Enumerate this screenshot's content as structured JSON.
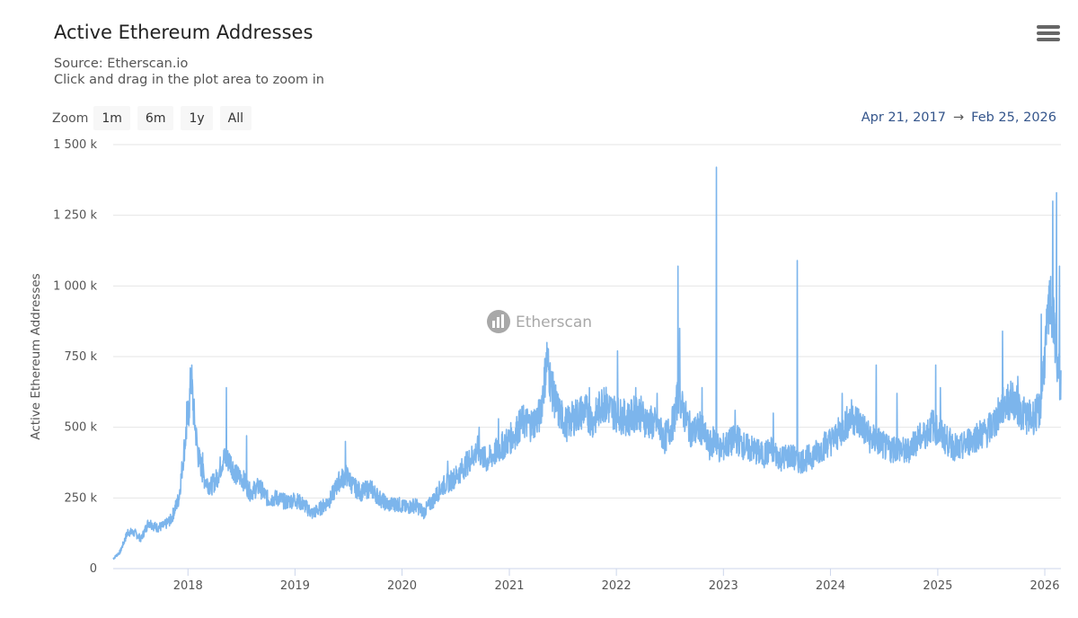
{
  "header": {
    "title": "Active Ethereum Addresses",
    "source": "Source: Etherscan.io",
    "hint": "Click and drag in the plot area to zoom in",
    "menu_icon": "hamburger-menu-icon"
  },
  "zoom": {
    "label": "Zoom",
    "buttons": [
      "1m",
      "6m",
      "1y",
      "All"
    ]
  },
  "range": {
    "from": "Apr 21, 2017",
    "arrow": "→",
    "to": "Feb 25, 2026"
  },
  "watermark": {
    "text": "Etherscan",
    "icon": "etherscan-logo-icon"
  },
  "colors": {
    "series": "#7cb5ec",
    "grid": "#e6e6e6",
    "axis": "#ccd6eb",
    "range_text": "#34558b"
  },
  "chart_data": {
    "type": "line",
    "title": "Active Ethereum Addresses",
    "ylabel": "Active Ethereum Addresses",
    "xlabel": "",
    "x_range": [
      "2017-04-21",
      "2026-02-25"
    ],
    "ylim": [
      0,
      1500000
    ],
    "y_ticks": [
      {
        "value": 0,
        "label": "0"
      },
      {
        "value": 250000,
        "label": "250 k"
      },
      {
        "value": 500000,
        "label": "500 k"
      },
      {
        "value": 750000,
        "label": "750 k"
      },
      {
        "value": 1000000,
        "label": "1 000 k"
      },
      {
        "value": 1250000,
        "label": "1 250 k"
      },
      {
        "value": 1500000,
        "label": "1 500 k"
      }
    ],
    "x_ticks": [
      {
        "date": "2018-01-01",
        "label": "2018"
      },
      {
        "date": "2019-01-01",
        "label": "2019"
      },
      {
        "date": "2020-01-01",
        "label": "2020"
      },
      {
        "date": "2021-01-01",
        "label": "2021"
      },
      {
        "date": "2022-01-01",
        "label": "2022"
      },
      {
        "date": "2023-01-01",
        "label": "2023"
      },
      {
        "date": "2024-01-01",
        "label": "2024"
      },
      {
        "date": "2025-01-01",
        "label": "2025"
      },
      {
        "date": "2026-01-01",
        "label": "2026"
      }
    ],
    "grid": true,
    "legend": "none",
    "series": [
      {
        "color": "#7cb5ec",
        "points": [
          [
            "2017-04-21",
            35000
          ],
          [
            "2017-05-15",
            60000
          ],
          [
            "2017-06-10",
            130000
          ],
          [
            "2017-07-05",
            125000
          ],
          [
            "2017-07-25",
            105000
          ],
          [
            "2017-08-20",
            165000
          ],
          [
            "2017-09-15",
            145000
          ],
          [
            "2017-10-10",
            150000
          ],
          [
            "2017-11-05",
            175000
          ],
          [
            "2017-12-01",
            250000
          ],
          [
            "2017-12-20",
            430000
          ],
          [
            "2018-01-05",
            570000
          ],
          [
            "2018-01-12",
            690000
          ],
          [
            "2018-01-20",
            560000
          ],
          [
            "2018-02-05",
            400000
          ],
          [
            "2018-02-25",
            320000
          ],
          [
            "2018-03-20",
            290000
          ],
          [
            "2018-04-10",
            320000
          ],
          [
            "2018-05-01",
            390000
          ],
          [
            "2018-05-25",
            380000
          ],
          [
            "2018-06-15",
            330000
          ],
          [
            "2018-07-05",
            320000
          ],
          [
            "2018-08-01",
            270000
          ],
          [
            "2018-09-01",
            290000
          ],
          [
            "2018-10-01",
            245000
          ],
          [
            "2018-11-01",
            250000
          ],
          [
            "2018-12-01",
            235000
          ],
          [
            "2019-01-01",
            245000
          ],
          [
            "2019-02-01",
            225000
          ],
          [
            "2019-03-01",
            195000
          ],
          [
            "2019-04-01",
            215000
          ],
          [
            "2019-05-01",
            245000
          ],
          [
            "2019-06-01",
            310000
          ],
          [
            "2019-06-25",
            330000
          ],
          [
            "2019-07-20",
            290000
          ],
          [
            "2019-08-15",
            270000
          ],
          [
            "2019-09-15",
            285000
          ],
          [
            "2019-10-15",
            250000
          ],
          [
            "2019-11-15",
            225000
          ],
          [
            "2019-12-15",
            230000
          ],
          [
            "2020-01-15",
            215000
          ],
          [
            "2020-02-15",
            225000
          ],
          [
            "2020-03-15",
            200000
          ],
          [
            "2020-04-15",
            240000
          ],
          [
            "2020-05-15",
            290000
          ],
          [
            "2020-06-15",
            310000
          ],
          [
            "2020-07-15",
            340000
          ],
          [
            "2020-08-15",
            380000
          ],
          [
            "2020-09-15",
            420000
          ],
          [
            "2020-10-15",
            380000
          ],
          [
            "2020-11-15",
            410000
          ],
          [
            "2020-12-15",
            440000
          ],
          [
            "2021-01-15",
            470000
          ],
          [
            "2021-02-15",
            520000
          ],
          [
            "2021-03-15",
            510000
          ],
          [
            "2021-04-15",
            540000
          ],
          [
            "2021-05-10",
            740000
          ],
          [
            "2021-05-25",
            640000
          ],
          [
            "2021-06-15",
            560000
          ],
          [
            "2021-07-15",
            510000
          ],
          [
            "2021-08-15",
            540000
          ],
          [
            "2021-09-15",
            560000
          ],
          [
            "2021-10-15",
            520000
          ],
          [
            "2021-11-15",
            590000
          ],
          [
            "2021-12-15",
            560000
          ],
          [
            "2022-01-15",
            540000
          ],
          [
            "2022-02-15",
            530000
          ],
          [
            "2022-03-15",
            560000
          ],
          [
            "2022-04-15",
            520000
          ],
          [
            "2022-05-15",
            510000
          ],
          [
            "2022-06-15",
            460000
          ],
          [
            "2022-07-15",
            520000
          ],
          [
            "2022-08-01",
            620000
          ],
          [
            "2022-08-15",
            560000
          ],
          [
            "2022-09-15",
            480000
          ],
          [
            "2022-10-15",
            500000
          ],
          [
            "2022-11-15",
            430000
          ],
          [
            "2022-12-01",
            460000
          ],
          [
            "2022-12-20",
            420000
          ],
          [
            "2023-01-15",
            440000
          ],
          [
            "2023-02-15",
            460000
          ],
          [
            "2023-03-15",
            430000
          ],
          [
            "2023-04-15",
            420000
          ],
          [
            "2023-05-15",
            400000
          ],
          [
            "2023-06-15",
            420000
          ],
          [
            "2023-07-15",
            390000
          ],
          [
            "2023-08-15",
            400000
          ],
          [
            "2023-09-15",
            380000
          ],
          [
            "2023-10-15",
            390000
          ],
          [
            "2023-11-15",
            410000
          ],
          [
            "2023-12-15",
            440000
          ],
          [
            "2024-01-15",
            460000
          ],
          [
            "2024-02-15",
            500000
          ],
          [
            "2024-03-15",
            540000
          ],
          [
            "2024-04-15",
            510000
          ],
          [
            "2024-05-15",
            460000
          ],
          [
            "2024-06-15",
            450000
          ],
          [
            "2024-07-15",
            420000
          ],
          [
            "2024-08-15",
            430000
          ],
          [
            "2024-09-15",
            410000
          ],
          [
            "2024-10-15",
            450000
          ],
          [
            "2024-11-15",
            470000
          ],
          [
            "2024-12-15",
            510000
          ],
          [
            "2025-01-15",
            470000
          ],
          [
            "2025-02-15",
            440000
          ],
          [
            "2025-03-15",
            420000
          ],
          [
            "2025-04-15",
            450000
          ],
          [
            "2025-05-15",
            470000
          ],
          [
            "2025-06-15",
            480000
          ],
          [
            "2025-07-15",
            520000
          ],
          [
            "2025-08-15",
            580000
          ],
          [
            "2025-09-15",
            600000
          ],
          [
            "2025-10-15",
            550000
          ],
          [
            "2025-11-15",
            530000
          ],
          [
            "2025-12-15",
            560000
          ],
          [
            "2026-01-05",
            800000
          ],
          [
            "2026-01-20",
            950000
          ],
          [
            "2026-02-05",
            820000
          ],
          [
            "2026-02-15",
            700000
          ],
          [
            "2026-02-25",
            650000
          ]
        ],
        "spikes": [
          [
            "2017-12-28",
            590000
          ],
          [
            "2018-01-14",
            720000
          ],
          [
            "2018-02-20",
            410000
          ],
          [
            "2018-05-12",
            640000
          ],
          [
            "2018-07-20",
            470000
          ],
          [
            "2019-06-22",
            450000
          ],
          [
            "2020-06-05",
            380000
          ],
          [
            "2020-09-20",
            500000
          ],
          [
            "2020-11-25",
            530000
          ],
          [
            "2021-05-09",
            800000
          ],
          [
            "2021-10-01",
            640000
          ],
          [
            "2021-11-20",
            640000
          ],
          [
            "2022-01-05",
            770000
          ],
          [
            "2022-03-08",
            640000
          ],
          [
            "2022-05-20",
            620000
          ],
          [
            "2022-07-30",
            1070000
          ],
          [
            "2022-08-05",
            850000
          ],
          [
            "2022-10-20",
            640000
          ],
          [
            "2022-12-08",
            1420000
          ],
          [
            "2023-02-10",
            560000
          ],
          [
            "2023-06-20",
            550000
          ],
          [
            "2023-09-10",
            1090000
          ],
          [
            "2024-02-10",
            620000
          ],
          [
            "2024-06-05",
            720000
          ],
          [
            "2024-08-15",
            620000
          ],
          [
            "2024-12-25",
            720000
          ],
          [
            "2025-01-10",
            640000
          ],
          [
            "2025-08-10",
            840000
          ],
          [
            "2025-10-01",
            680000
          ],
          [
            "2025-12-20",
            900000
          ],
          [
            "2026-01-15",
            1000000
          ],
          [
            "2026-01-28",
            1300000
          ],
          [
            "2026-02-10",
            1330000
          ],
          [
            "2026-02-20",
            1070000
          ]
        ]
      }
    ]
  }
}
